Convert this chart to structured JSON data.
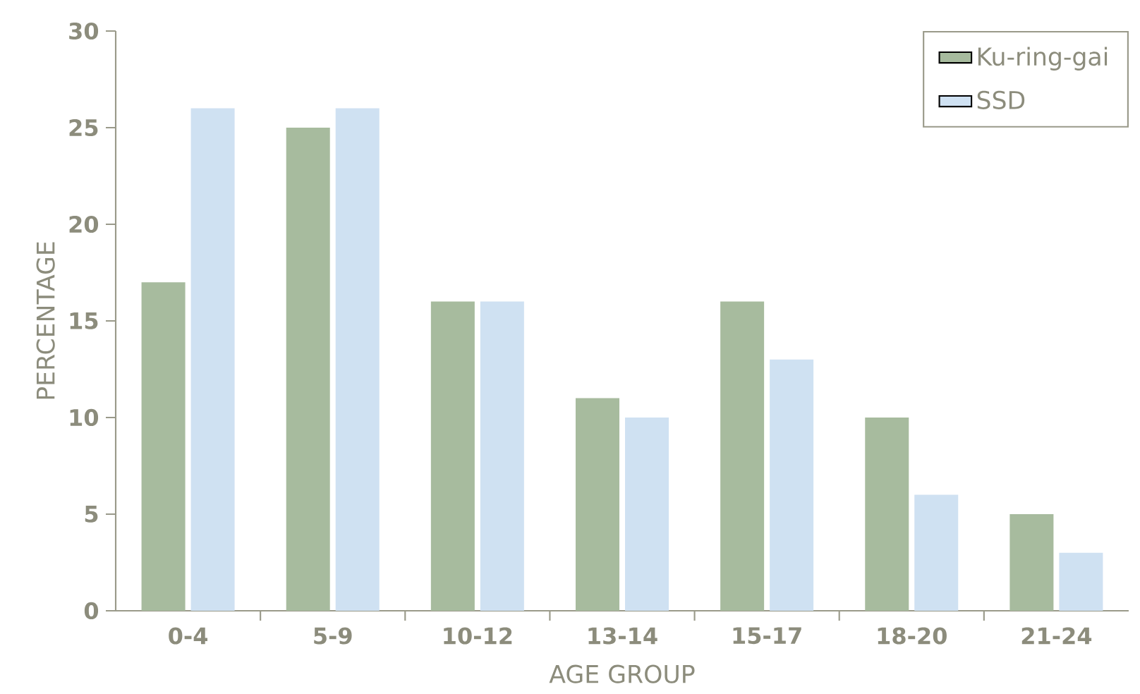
{
  "chart_data": {
    "type": "bar",
    "xlabel": "AGE GROUP",
    "ylabel": "PERCENTAGE",
    "categories": [
      "0-4",
      "5-9",
      "10-12",
      "13-14",
      "15-17",
      "18-20",
      "21-24"
    ],
    "series": [
      {
        "name": "Ku-ring-gai",
        "color": "#a7bb9e",
        "values": [
          17,
          25,
          16,
          11,
          16,
          10,
          5
        ]
      },
      {
        "name": "SSD",
        "color": "#cfe1f2",
        "values": [
          26,
          26,
          16,
          10,
          13,
          6,
          3
        ]
      }
    ],
    "ylim": [
      0,
      30
    ],
    "yticks": [
      0,
      5,
      10,
      15,
      20,
      25,
      30
    ],
    "legend": "top right"
  }
}
